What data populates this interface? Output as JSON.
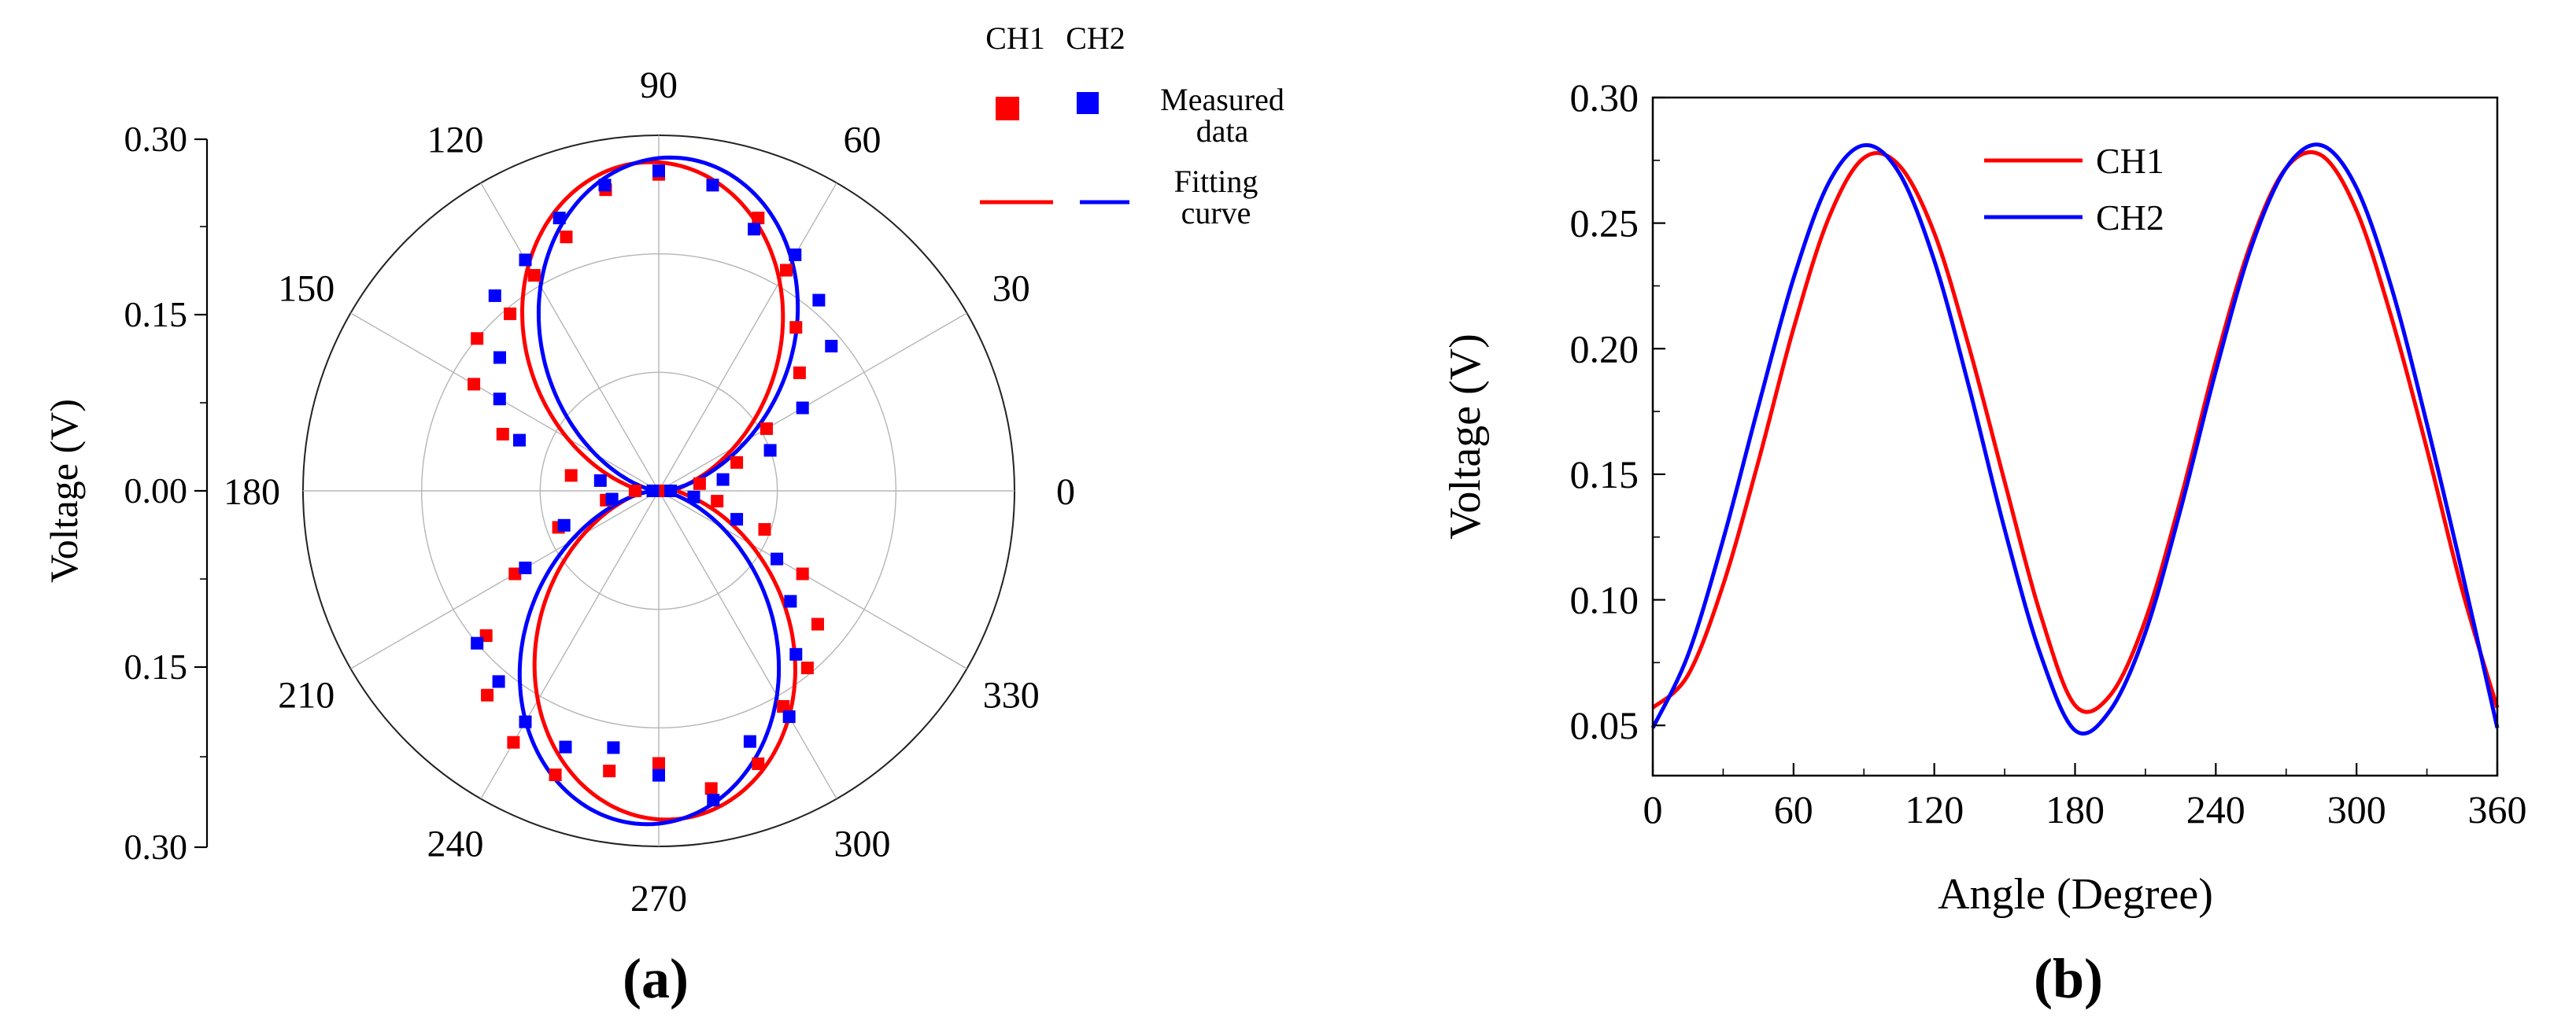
{
  "colors": {
    "ch1": "#ff0000",
    "ch2": "#0000ff"
  },
  "panel_a": {
    "caption": "(a)",
    "ylabel": "Voltage (V)",
    "radial_tick_labels": [
      "0.30",
      "0.15",
      "0.00",
      "0.15",
      "0.30"
    ],
    "angle_labels": [
      {
        "deg": 0,
        "label": "0"
      },
      {
        "deg": 30,
        "label": "30"
      },
      {
        "deg": 60,
        "label": "60"
      },
      {
        "deg": 90,
        "label": "90"
      },
      {
        "deg": 120,
        "label": "120"
      },
      {
        "deg": 150,
        "label": "150"
      },
      {
        "deg": 180,
        "label": "180"
      },
      {
        "deg": 210,
        "label": "210"
      },
      {
        "deg": 240,
        "label": "240"
      },
      {
        "deg": 270,
        "label": "270"
      },
      {
        "deg": 300,
        "label": "300"
      },
      {
        "deg": 330,
        "label": "330"
      }
    ],
    "legend": {
      "ch1": "CH1",
      "ch2": "CH2",
      "measured": [
        "Measured",
        "data"
      ],
      "fitting": [
        "Fitting",
        "curve"
      ]
    }
  },
  "panel_b": {
    "caption": "(b)",
    "xlabel": "Angle (Degree)",
    "ylabel": "Voltage (V)",
    "xticks": [
      "0",
      "60",
      "120",
      "180",
      "240",
      "300",
      "360"
    ],
    "yticks": [
      "0.05",
      "0.10",
      "0.15",
      "0.20",
      "0.25",
      "0.30"
    ],
    "legend": {
      "ch1": "CH1",
      "ch2": "CH2"
    }
  },
  "chart_data": [
    {
      "type": "polar",
      "title": "",
      "rlim": [
        0,
        0.3
      ],
      "r_grid": [
        0.1,
        0.2,
        0.3
      ],
      "theta_grid_deg": [
        0,
        30,
        60,
        90,
        120,
        150,
        180,
        210,
        240,
        270,
        300,
        330
      ],
      "fit": {
        "CH1": {
          "offset": 0.0155,
          "amplitude": 0.262,
          "period_deg": 180,
          "peak_deg": 92
        },
        "CH2": {
          "offset": 0.0045,
          "amplitude": 0.277,
          "period_deg": 180,
          "peak_deg": 87
        }
      },
      "series": [
        {
          "name": "CH1 Measured data",
          "theta_deg": [
            0,
            10,
            20,
            30,
            40,
            50,
            60,
            70,
            80,
            90,
            100,
            110,
            120,
            130,
            140,
            150,
            160,
            170,
            180,
            190,
            200,
            210,
            220,
            230,
            240,
            250,
            260,
            270,
            280,
            290,
            300,
            310,
            320,
            330,
            340,
            350
          ],
          "r": [
            0.005,
            0.035,
            0.07,
            0.105,
            0.155,
            0.18,
            0.215,
            0.245,
            0.262,
            0.267,
            0.258,
            0.228,
            0.21,
            0.195,
            0.2,
            0.18,
            0.14,
            0.075,
            0.02,
            0.045,
            0.09,
            0.14,
            0.19,
            0.225,
            0.245,
            0.255,
            0.24,
            0.23,
            0.255,
            0.245,
            0.21,
            0.195,
            0.175,
            0.14,
            0.095,
            0.05
          ]
        },
        {
          "name": "CH2 Measured data",
          "theta_deg": [
            0,
            10,
            20,
            30,
            40,
            50,
            60,
            70,
            80,
            90,
            100,
            110,
            120,
            130,
            140,
            150,
            160,
            170,
            180,
            190,
            200,
            210,
            220,
            230,
            240,
            250,
            260,
            270,
            280,
            290,
            300,
            310,
            320,
            330,
            340,
            350
          ],
          "r": [
            0.01,
            0.055,
            0.1,
            0.14,
            0.19,
            0.21,
            0.23,
            0.235,
            0.262,
            0.27,
            0.262,
            0.245,
            0.225,
            0.215,
            0.175,
            0.155,
            0.125,
            0.05,
            0.005,
            0.04,
            0.085,
            0.13,
            0.2,
            0.21,
            0.225,
            0.23,
            0.22,
            0.24,
            0.265,
            0.225,
            0.22,
            0.18,
            0.145,
            0.115,
            0.07,
            0.03
          ]
        }
      ]
    },
    {
      "type": "line",
      "title": "",
      "xlabel": "Angle (Degree)",
      "ylabel": "Voltage (V)",
      "xlim": [
        0,
        360
      ],
      "ylim": [
        0.03,
        0.3
      ],
      "x": [
        0,
        15,
        30,
        45,
        60,
        75,
        90,
        105,
        120,
        135,
        150,
        165,
        180,
        195,
        210,
        225,
        240,
        255,
        270,
        285,
        300,
        315,
        330,
        345,
        360
      ],
      "series": [
        {
          "name": "CH1",
          "values": [
            0.057,
            0.07,
            0.106,
            0.155,
            0.208,
            0.252,
            0.276,
            0.273,
            0.246,
            0.2,
            0.147,
            0.095,
            0.058,
            0.062,
            0.092,
            0.14,
            0.195,
            0.242,
            0.272,
            0.277,
            0.255,
            0.212,
            0.16,
            0.104,
            0.057
          ]
        },
        {
          "name": "CH2",
          "values": [
            0.049,
            0.078,
            0.124,
            0.177,
            0.228,
            0.266,
            0.281,
            0.27,
            0.235,
            0.184,
            0.128,
            0.079,
            0.048,
            0.056,
            0.087,
            0.136,
            0.191,
            0.24,
            0.272,
            0.281,
            0.264,
            0.224,
            0.17,
            0.111,
            0.049
          ]
        }
      ]
    }
  ]
}
